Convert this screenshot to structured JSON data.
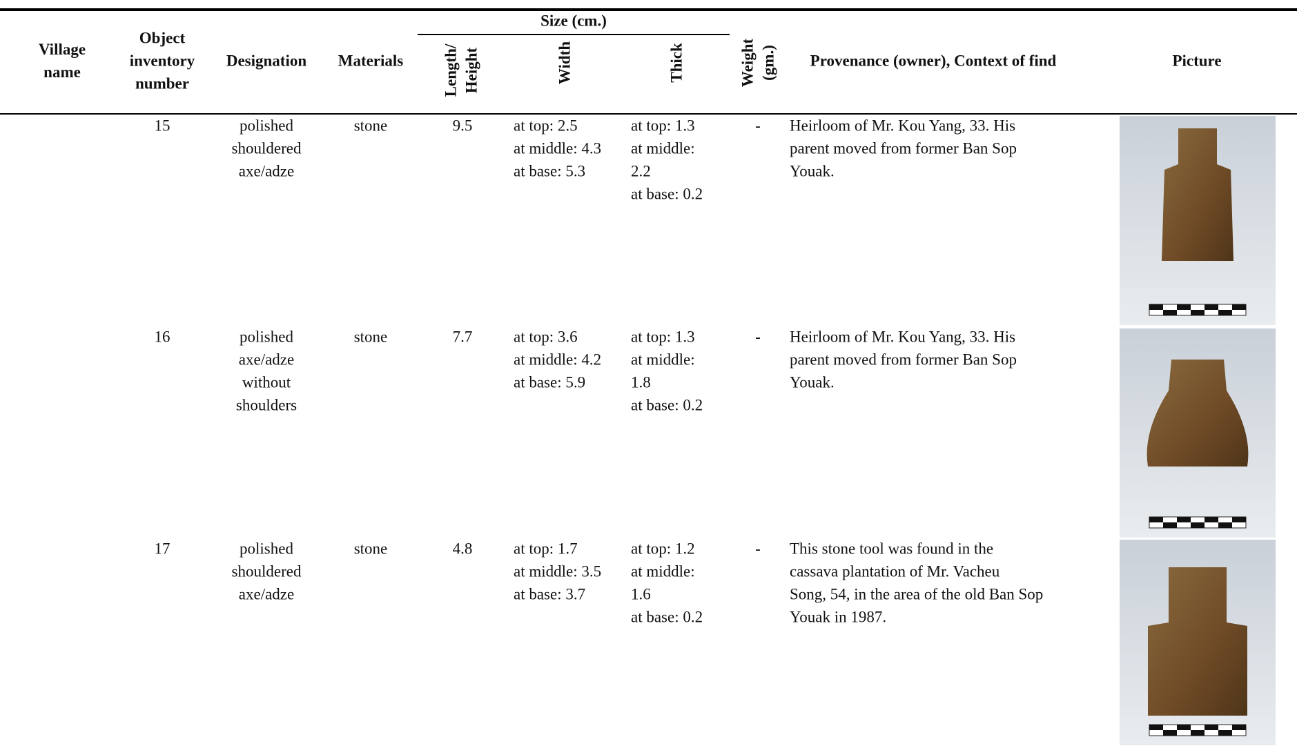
{
  "header": {
    "size_group": "Size (cm.)",
    "columns": [
      [
        "Village",
        "name"
      ],
      [
        "Object",
        "inventory",
        "number"
      ],
      [
        "Designation"
      ],
      [
        "Materials"
      ],
      [
        "Length/",
        "Height"
      ],
      [
        "Width"
      ],
      [
        "Thick"
      ],
      [
        "Weight",
        "(gm.)"
      ],
      [
        "Provenance (owner), Context of find"
      ],
      [
        "Picture"
      ]
    ]
  },
  "rows": [
    {
      "number": "15",
      "designation": [
        "polished",
        "shouldered",
        "axe/adze"
      ],
      "materials": "stone",
      "length": "9.5",
      "width": [
        "at top: 2.5",
        "at middle: 4.3",
        "at base: 5.3"
      ],
      "thick": [
        "at top: 1.3",
        "at middle:",
        "2.2",
        "at base: 0.2"
      ],
      "weight": "-",
      "provenance": [
        "Heirloom of Mr. Kou Yang, 33. His",
        "parent moved from former Ban Sop",
        "Youak."
      ]
    },
    {
      "number": "16",
      "designation": [
        "polished",
        "axe/adze",
        "without",
        "shoulders"
      ],
      "materials": "stone",
      "length": "7.7",
      "width": [
        "at top: 3.6",
        "at middle: 4.2",
        "at base: 5.9"
      ],
      "thick": [
        "at top: 1.3",
        "at middle:",
        "1.8",
        "at base: 0.2"
      ],
      "weight": "-",
      "provenance": [
        "Heirloom of Mr. Kou Yang, 33. His",
        "parent moved from former Ban Sop",
        "Youak."
      ]
    },
    {
      "number": "17",
      "designation": [
        "polished",
        "shouldered",
        "axe/adze"
      ],
      "materials": "stone",
      "length": "4.8",
      "width": [
        "at top: 1.7",
        "at middle: 3.5",
        "at base: 3.7"
      ],
      "thick": [
        "at top: 1.2",
        "at middle:",
        "1.6",
        "at base: 0.2"
      ],
      "weight": "-",
      "provenance": [
        "This stone tool was found in the",
        "cassava plantation of Mr. Vacheu",
        "Song, 54, in the area of the old Ban Sop",
        "Youak in 1987."
      ]
    }
  ]
}
